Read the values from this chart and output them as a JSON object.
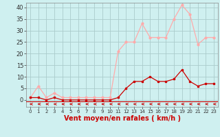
{
  "x": [
    0,
    1,
    2,
    3,
    4,
    5,
    6,
    7,
    8,
    9,
    10,
    11,
    12,
    13,
    14,
    15,
    16,
    17,
    18,
    19,
    20,
    21,
    22,
    23
  ],
  "y_rafales": [
    1,
    6,
    1,
    3,
    1,
    1,
    1,
    1,
    1,
    1,
    1,
    21,
    25,
    25,
    33,
    27,
    27,
    27,
    35,
    41,
    37,
    24,
    27,
    27
  ],
  "y_moyen": [
    1,
    1,
    0,
    1,
    0,
    0,
    0,
    0,
    0,
    0,
    0,
    1,
    5,
    8,
    8,
    10,
    8,
    8,
    9,
    13,
    8,
    6,
    7,
    7
  ],
  "xlabel": "Vent moyen/en rafales ( km/h )",
  "ylim": [
    -3,
    42
  ],
  "xlim": [
    -0.5,
    23.5
  ],
  "bg_color": "#cff0f0",
  "grid_color": "#aacccc",
  "line_color_rafales": "#ffaaaa",
  "line_color_moyen": "#cc0000",
  "arrow_color": "#cc0000",
  "yticks": [
    0,
    5,
    10,
    15,
    20,
    25,
    30,
    35,
    40
  ],
  "xticks": [
    0,
    1,
    2,
    3,
    4,
    5,
    6,
    7,
    8,
    9,
    10,
    11,
    12,
    13,
    14,
    15,
    16,
    17,
    18,
    19,
    20,
    21,
    22,
    23
  ],
  "xlabel_color": "#cc0000",
  "xlabel_fontsize": 7,
  "tick_fontsize": 5,
  "ytick_fontsize": 6
}
